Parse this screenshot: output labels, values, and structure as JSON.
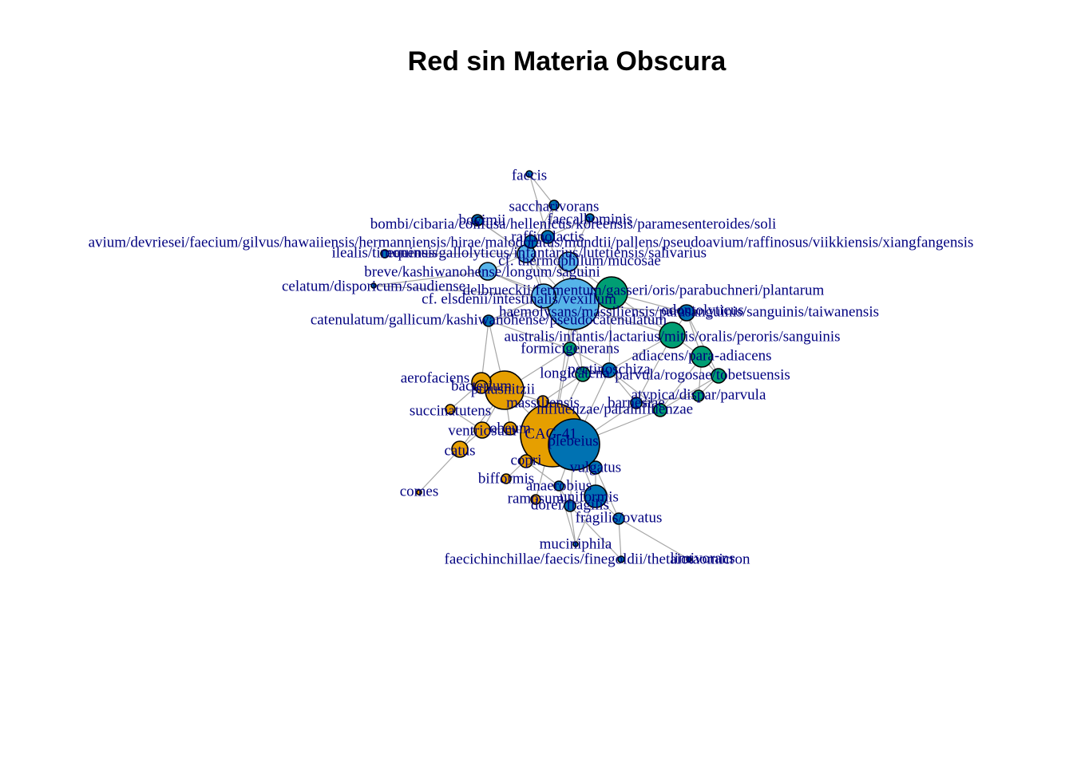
{
  "title": "Red sin Materia Obscura",
  "colors": {
    "orange": "#E69F00",
    "lightblue": "#56B4E9",
    "blue": "#0072B2",
    "green": "#009E73",
    "edge": "#A6A6A6",
    "label": "#00007F"
  },
  "nodes": [
    {
      "id": "n1",
      "label": "faecis",
      "c": "blue"
    },
    {
      "id": "n2",
      "label": "saccharivorans",
      "c": "blue"
    },
    {
      "id": "n3",
      "label": "faecalhominis",
      "c": "blue"
    },
    {
      "id": "n4",
      "label": "bombi/cibaria/confusa/hellenicus/koreensis/paramesenteroides/soli",
      "c": "blue"
    },
    {
      "id": "n5",
      "label": "bovimii",
      "c": "blue"
    },
    {
      "id": "n6",
      "label": "raffinolactis",
      "c": "blue"
    },
    {
      "id": "n7",
      "label": "avium/devriesei/faecium/gilvus/hawaiiensis/hermanniensis/hirae/malodoratus/mundtii/pallens/pseudoavium/raffinosus/viikkiensis/xiangfangensis",
      "c": "blue"
    },
    {
      "id": "n8",
      "label": "ilealis/timonensis",
      "c": "blue"
    },
    {
      "id": "n9",
      "label": "equinus/gallolyticus/infantarius/lutetiensis/salivarius",
      "c": "lightblue"
    },
    {
      "id": "n10",
      "label": "cf. thermophilum/mucosae",
      "c": "lightblue"
    },
    {
      "id": "n11",
      "label": "breve/kashiwanohense/longum/saguini",
      "c": "lightblue"
    },
    {
      "id": "n12",
      "label": "celatum/disporicum/saudiense",
      "c": "blue"
    },
    {
      "id": "n13",
      "label": "delbrueckii/fermentum/gasseri/oris/parabuchneri/plantarum",
      "c": "green"
    },
    {
      "id": "n14",
      "label": "cf. elsdenii/intestinalis/vexillum",
      "c": "lightblue"
    },
    {
      "id": "n15",
      "label": "haemolysans/massiliensis/parasanguinis/sanguinis/taiwanensis",
      "c": "lightblue"
    },
    {
      "id": "n16",
      "label": "catenulatum/gallicum/kashiwanohense/pseudocatenulatum",
      "c": "blue"
    },
    {
      "id": "n17",
      "label": "odontolyticus",
      "c": "blue"
    },
    {
      "id": "n18",
      "label": "australis/infantis/lactarius/mitis/oralis/peroris/sanguinis",
      "c": "green"
    },
    {
      "id": "n19",
      "label": "formicigenerans",
      "c": "green"
    },
    {
      "id": "n20",
      "label": "adiacens/para-adiacens",
      "c": "green"
    },
    {
      "id": "n21",
      "label": "longicatena",
      "c": "green"
    },
    {
      "id": "n22",
      "label": "pectinoschiza",
      "c": "blue"
    },
    {
      "id": "n23",
      "label": "parvula/rogosae/tobetsuensis",
      "c": "green"
    },
    {
      "id": "n24",
      "label": "aerofaciens",
      "c": "orange"
    },
    {
      "id": "n25",
      "label": "bacterium",
      "c": "orange"
    },
    {
      "id": "n26",
      "label": "prausnitzii",
      "c": "orange"
    },
    {
      "id": "n27",
      "label": "atypica/dispar/parvula",
      "c": "green"
    },
    {
      "id": "n28",
      "label": "massiliensis",
      "c": "orange"
    },
    {
      "id": "n29",
      "label": "barnesiae",
      "c": "blue"
    },
    {
      "id": "n30",
      "label": "influenzae/parainfluenzae",
      "c": "green"
    },
    {
      "id": "n31",
      "label": "succinatutens",
      "c": "orange"
    },
    {
      "id": "n32",
      "label": "ventriosum",
      "c": "orange"
    },
    {
      "id": "n33",
      "label": "obeum",
      "c": "orange"
    },
    {
      "id": "n34",
      "label": "CAG-41",
      "c": "orange"
    },
    {
      "id": "n35",
      "label": "plebeius",
      "c": "blue"
    },
    {
      "id": "n36",
      "label": "catus",
      "c": "orange"
    },
    {
      "id": "n37",
      "label": "copri",
      "c": "orange"
    },
    {
      "id": "n38",
      "label": "vulgatus",
      "c": "blue"
    },
    {
      "id": "n39",
      "label": "comes",
      "c": "orange"
    },
    {
      "id": "n40",
      "label": "bifformis",
      "c": "orange"
    },
    {
      "id": "n41",
      "label": "anaerobius",
      "c": "blue"
    },
    {
      "id": "n42",
      "label": "uniformis",
      "c": "blue"
    },
    {
      "id": "n43",
      "label": "ramosum",
      "c": "orange"
    },
    {
      "id": "n44",
      "label": "dorei/fragilis",
      "c": "blue"
    },
    {
      "id": "n45",
      "label": "fragilis/ovatus",
      "c": "blue"
    },
    {
      "id": "n46",
      "label": "muciniphila",
      "c": "blue"
    },
    {
      "id": "n47",
      "label": "faecichinchillae/faecis/finegoldii/thetaiotaomicron",
      "c": "blue"
    },
    {
      "id": "n48",
      "label": "limivorans",
      "c": "blue"
    }
  ]
}
